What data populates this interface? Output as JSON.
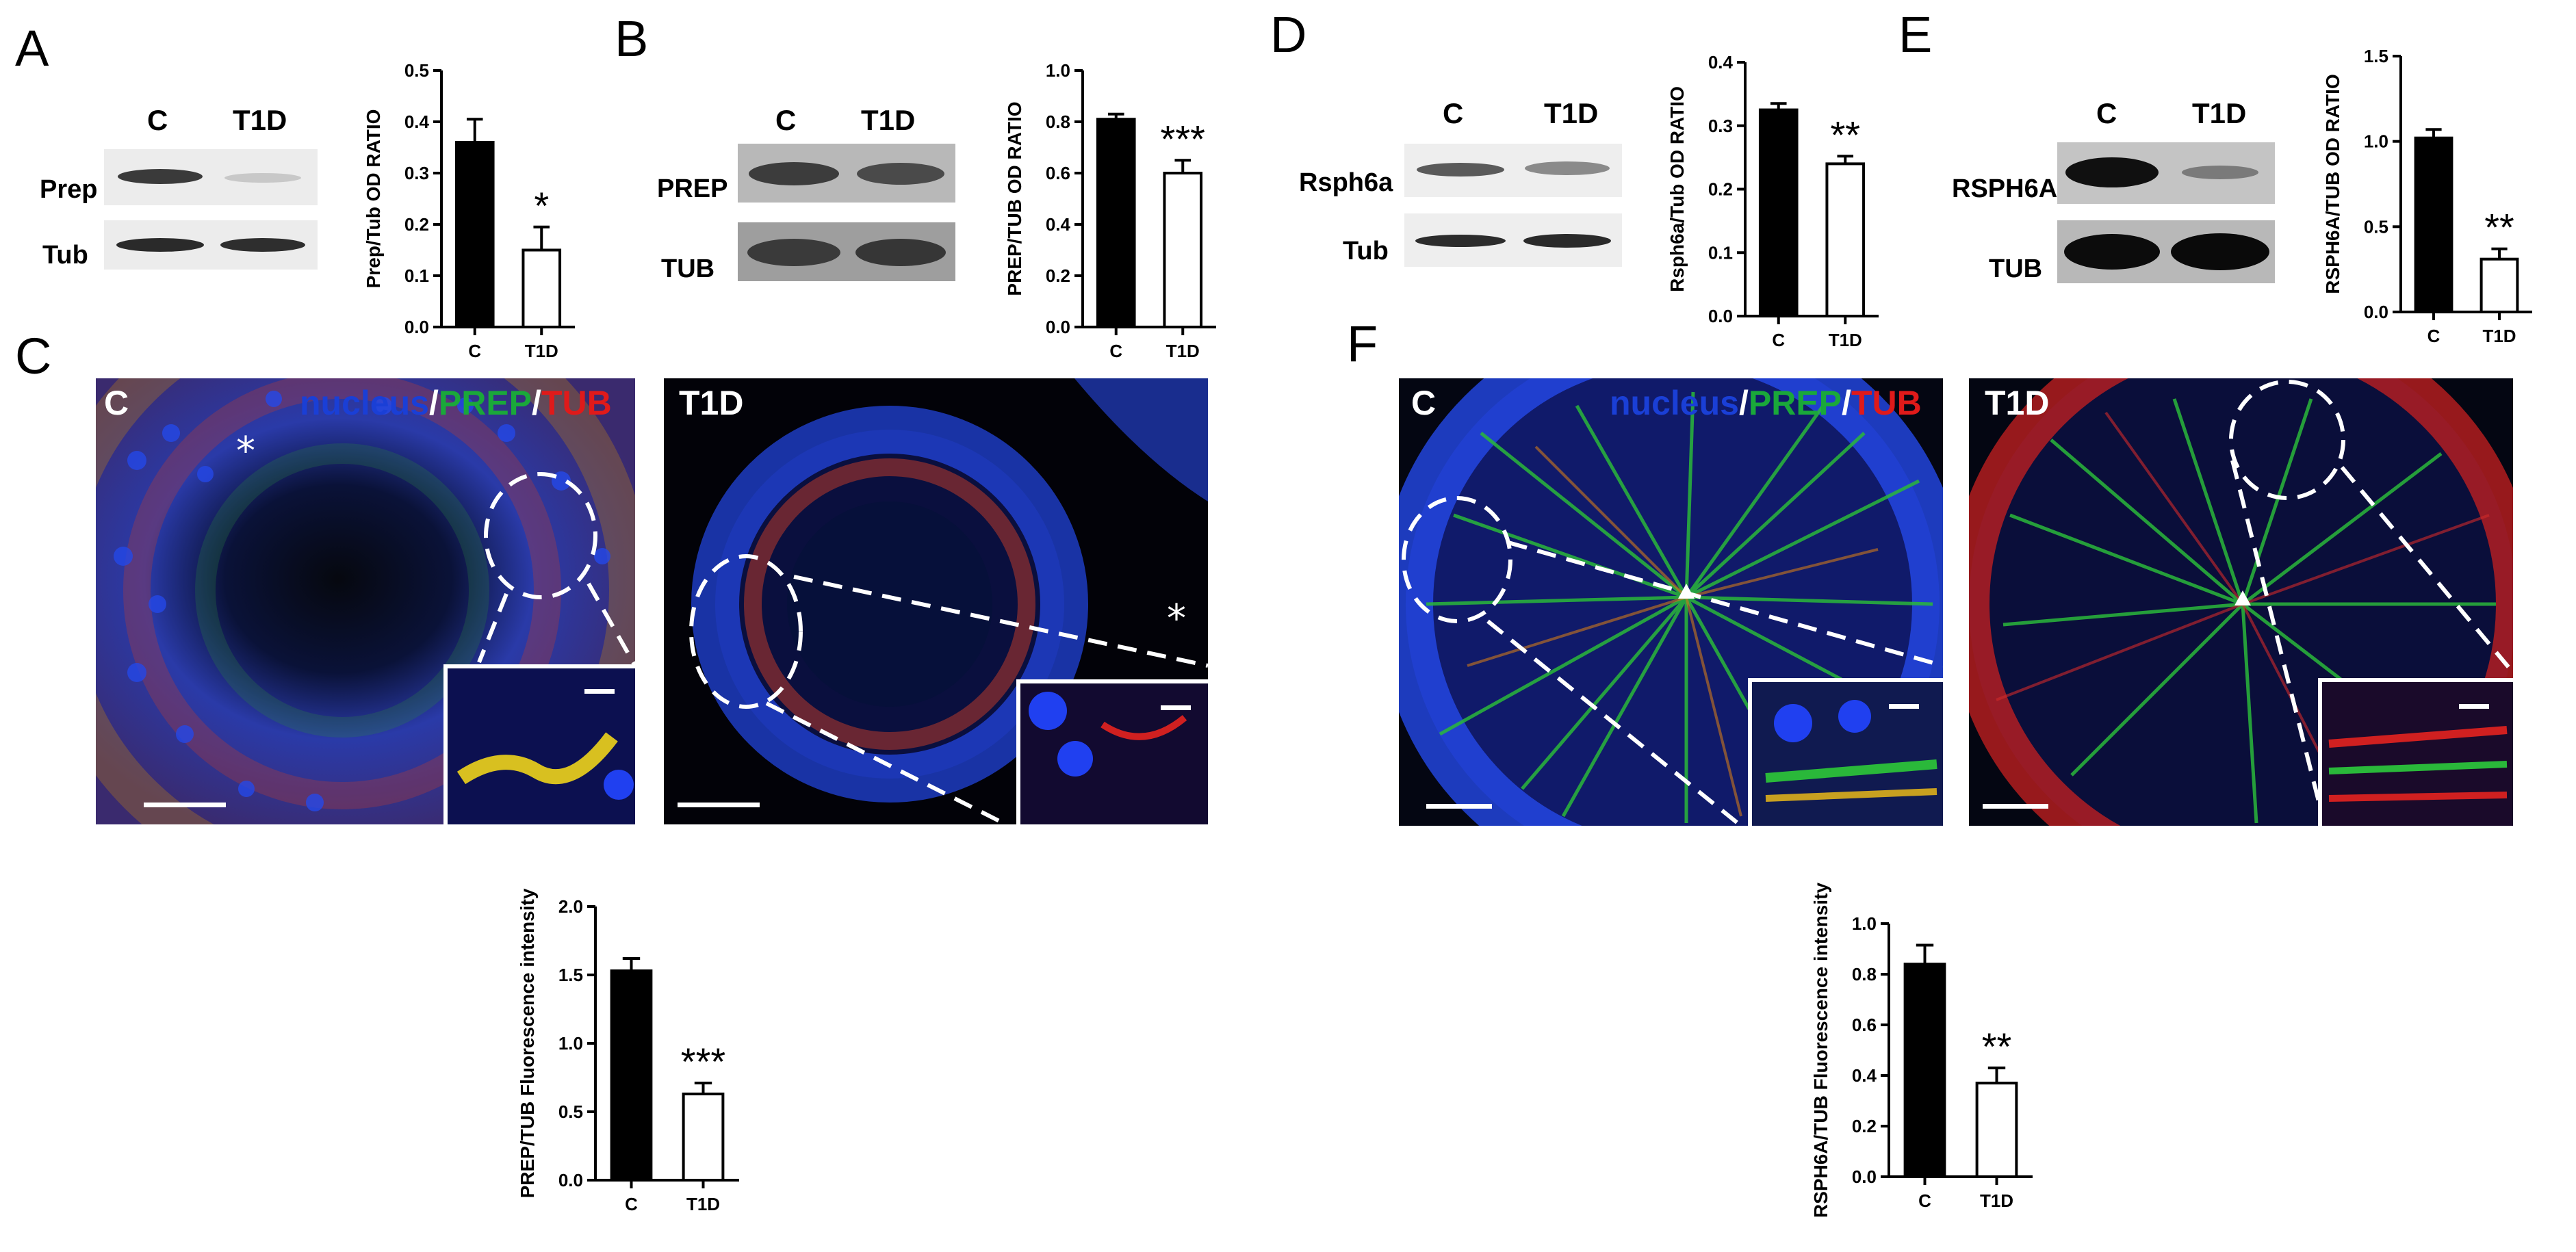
{
  "panels": {
    "A": {
      "letter": "A",
      "blot": {
        "head_c": "C",
        "head_t1d": "T1D",
        "row1": "Prep",
        "row2": "Tub"
      },
      "chart_data": {
        "type": "bar",
        "categories": [
          "C",
          "T1D"
        ],
        "values": [
          0.36,
          0.15
        ],
        "errors": [
          0.045,
          0.045
        ],
        "significance": "*",
        "ylabel": "Prep/Tub OD RATIO",
        "ylim": [
          0,
          0.5
        ],
        "yticks": [
          "0.0",
          "0.1",
          "0.2",
          "0.3",
          "0.4",
          "0.5"
        ],
        "colors": [
          "#000000",
          "#ffffff"
        ]
      }
    },
    "B": {
      "letter": "B",
      "blot": {
        "head_c": "C",
        "head_t1d": "T1D",
        "row1": "PREP",
        "row2": "TUB"
      },
      "chart_data": {
        "type": "bar",
        "categories": [
          "C",
          "T1D"
        ],
        "values": [
          0.81,
          0.6
        ],
        "errors": [
          0.02,
          0.05
        ],
        "significance": "***",
        "ylabel": "PREP/TUB OD RATIO",
        "ylim": [
          0,
          1.0
        ],
        "yticks": [
          "0.0",
          "0.2",
          "0.4",
          "0.6",
          "0.8",
          "1.0"
        ],
        "colors": [
          "#000000",
          "#ffffff"
        ]
      }
    },
    "C": {
      "letter": "C",
      "legend": {
        "nucleus": "nucleus",
        "sep1": "/",
        "prep": "PREP",
        "sep2": "/",
        "tub": "TUB"
      },
      "image_c_label": "C",
      "image_t1d_label": "T1D",
      "chart_data": {
        "type": "bar",
        "categories": [
          "C",
          "T1D"
        ],
        "values": [
          1.53,
          0.63
        ],
        "errors": [
          0.09,
          0.08
        ],
        "significance": "***",
        "ylabel": "PREP/TUB Fluorescence intensity",
        "ylim": [
          0,
          2.0
        ],
        "yticks": [
          "0.0",
          "0.5",
          "1.0",
          "1.5",
          "2.0"
        ],
        "colors": [
          "#000000",
          "#ffffff"
        ]
      }
    },
    "D": {
      "letter": "D",
      "blot": {
        "head_c": "C",
        "head_t1d": "T1D",
        "row1": "Rsph6a",
        "row2": "Tub"
      },
      "chart_data": {
        "type": "bar",
        "categories": [
          "C",
          "T1D"
        ],
        "values": [
          0.325,
          0.24
        ],
        "errors": [
          0.01,
          0.012
        ],
        "significance": "**",
        "ylabel": "Rsph6a/Tub OD RATIO",
        "ylim": [
          0,
          0.4
        ],
        "yticks": [
          "0.0",
          "0.1",
          "0.2",
          "0.3",
          "0.4"
        ],
        "colors": [
          "#000000",
          "#ffffff"
        ]
      }
    },
    "E": {
      "letter": "E",
      "blot": {
        "head_c": "C",
        "head_t1d": "T1D",
        "row1": "RSPH6A",
        "row2": "TUB"
      },
      "chart_data": {
        "type": "bar",
        "categories": [
          "C",
          "T1D"
        ],
        "values": [
          1.02,
          0.31
        ],
        "errors": [
          0.05,
          0.06
        ],
        "significance": "**",
        "ylabel": "RSPH6A/TUB OD RATIO",
        "ylim": [
          0,
          1.5
        ],
        "yticks": [
          "0.0",
          "0.5",
          "1.0",
          "1.5"
        ],
        "colors": [
          "#000000",
          "#ffffff"
        ]
      }
    },
    "F": {
      "letter": "F",
      "legend": {
        "nucleus": "nucleus",
        "sep1": "/",
        "prep": "PREP",
        "sep2": "/",
        "tub": "TUB"
      },
      "image_c_label": "C",
      "image_t1d_label": "T1D",
      "chart_data": {
        "type": "bar",
        "categories": [
          "C",
          "T1D"
        ],
        "values": [
          0.84,
          0.37
        ],
        "errors": [
          0.075,
          0.06
        ],
        "significance": "**",
        "ylabel": "RSPH6A/TUB Fluorescence intensity",
        "ylim": [
          0,
          1.0
        ],
        "yticks": [
          "0.0",
          "0.2",
          "0.4",
          "0.6",
          "0.8",
          "1.0"
        ],
        "colors": [
          "#000000",
          "#ffffff"
        ]
      }
    }
  },
  "colors": {
    "nucleus": "#1a3fd6",
    "prep": "#1aa83a",
    "tub": "#e01a1a",
    "image_bg": "#04061c"
  }
}
